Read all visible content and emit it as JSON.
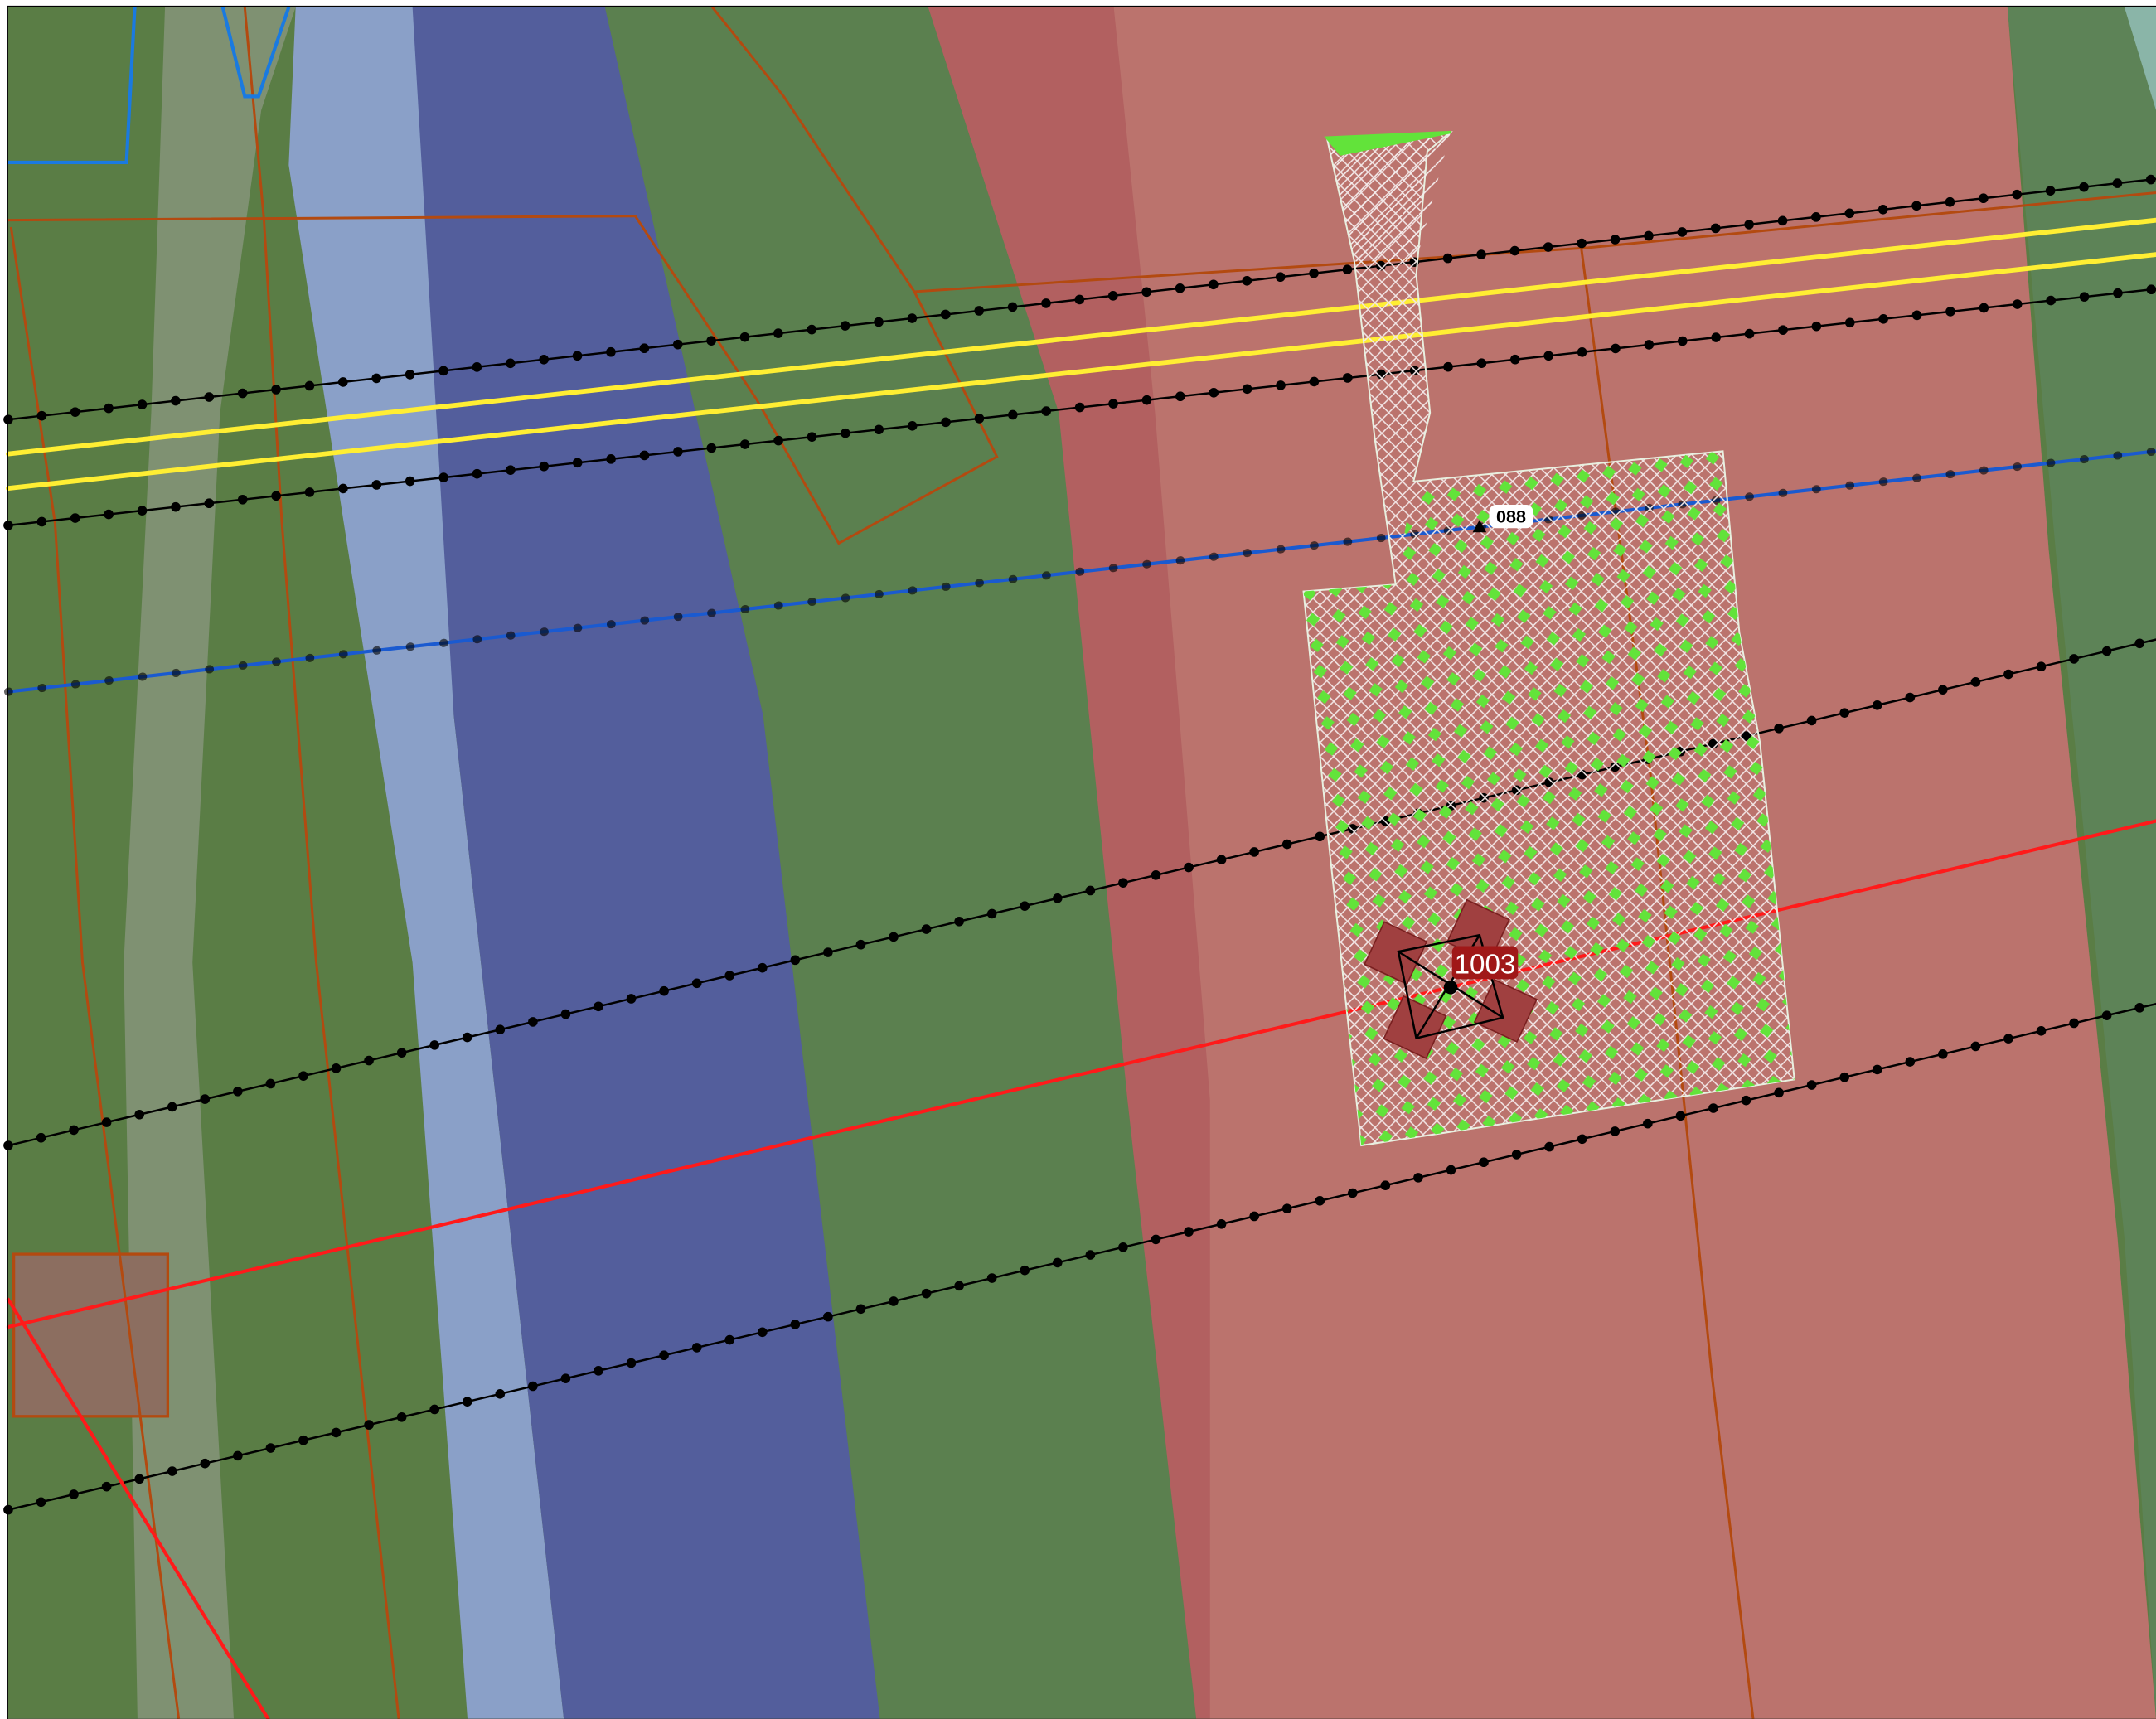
{
  "labels": {
    "station": "088",
    "tower": "1003"
  }
}
